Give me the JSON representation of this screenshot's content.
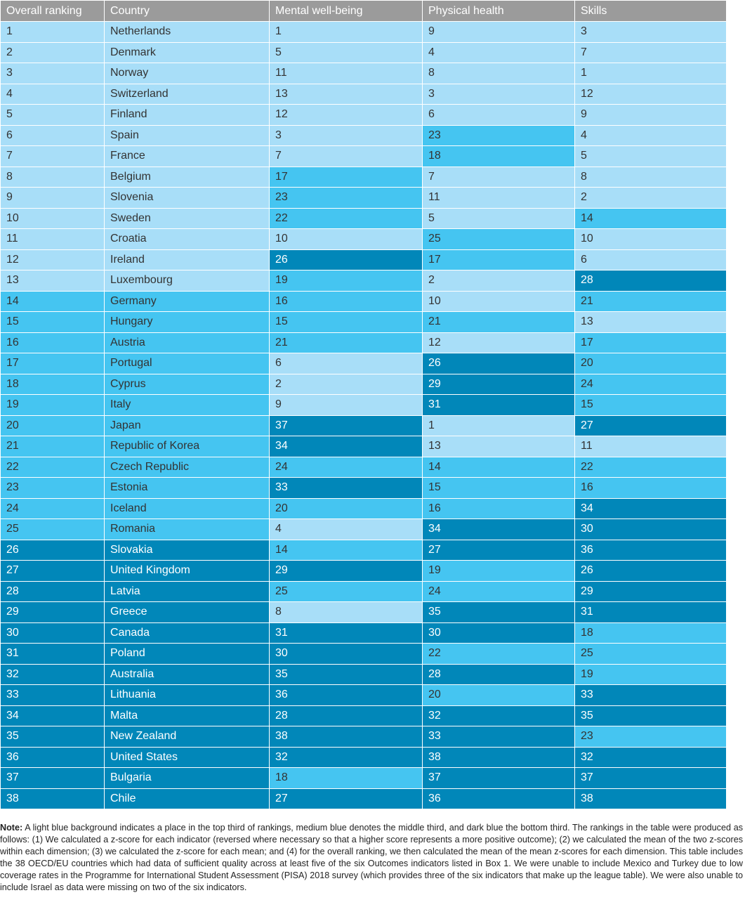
{
  "table": {
    "header": [
      "Overall ranking",
      "Country",
      "Mental well-being",
      "Physical health",
      "Skills"
    ],
    "header_color": "#9b9b9b",
    "tier_colors": [
      "#a8def8",
      "#45c5f1",
      "#0187b9"
    ],
    "rows": [
      [
        1,
        "Netherlands",
        1,
        9,
        3
      ],
      [
        2,
        "Denmark",
        5,
        4,
        7
      ],
      [
        3,
        "Norway",
        11,
        8,
        1
      ],
      [
        4,
        "Switzerland",
        13,
        3,
        12
      ],
      [
        5,
        "Finland",
        12,
        6,
        9
      ],
      [
        6,
        "Spain",
        3,
        23,
        4
      ],
      [
        7,
        "France",
        7,
        18,
        5
      ],
      [
        8,
        "Belgium",
        17,
        7,
        8
      ],
      [
        9,
        "Slovenia",
        23,
        11,
        2
      ],
      [
        10,
        "Sweden",
        22,
        5,
        14
      ],
      [
        11,
        "Croatia",
        10,
        25,
        10
      ],
      [
        12,
        "Ireland",
        26,
        17,
        6
      ],
      [
        13,
        "Luxembourg",
        19,
        2,
        28
      ],
      [
        14,
        "Germany",
        16,
        10,
        21
      ],
      [
        15,
        "Hungary",
        15,
        21,
        13
      ],
      [
        16,
        "Austria",
        21,
        12,
        17
      ],
      [
        17,
        "Portugal",
        6,
        26,
        20
      ],
      [
        18,
        "Cyprus",
        2,
        29,
        24
      ],
      [
        19,
        "Italy",
        9,
        31,
        15
      ],
      [
        20,
        "Japan",
        37,
        1,
        27
      ],
      [
        21,
        "Republic of Korea",
        34,
        13,
        11
      ],
      [
        22,
        "Czech Republic",
        24,
        14,
        22
      ],
      [
        23,
        "Estonia",
        33,
        15,
        16
      ],
      [
        24,
        "Iceland",
        20,
        16,
        34
      ],
      [
        25,
        "Romania",
        4,
        34,
        30
      ],
      [
        26,
        "Slovakia",
        14,
        27,
        36
      ],
      [
        27,
        "United Kingdom",
        29,
        19,
        26
      ],
      [
        28,
        "Latvia",
        25,
        24,
        29
      ],
      [
        29,
        "Greece",
        8,
        35,
        31
      ],
      [
        30,
        "Canada",
        31,
        30,
        18
      ],
      [
        31,
        "Poland",
        30,
        22,
        25
      ],
      [
        32,
        "Australia",
        35,
        28,
        19
      ],
      [
        33,
        "Lithuania",
        36,
        20,
        33
      ],
      [
        34,
        "Malta",
        28,
        32,
        35
      ],
      [
        35,
        "New Zealand",
        38,
        33,
        23
      ],
      [
        36,
        "United States",
        32,
        38,
        32
      ],
      [
        37,
        "Bulgaria",
        18,
        37,
        37
      ],
      [
        38,
        "Chile",
        27,
        36,
        38
      ]
    ]
  },
  "note": {
    "label": "Note:",
    "text": "A light blue background indicates a place in the top third of rankings, medium blue denotes the middle third, and dark blue the bottom third. The rankings in the table were produced as follows: (1) We calculated a z-score for each indicator (reversed where necessary so that a higher score represents a more positive outcome); (2) we calculated the mean of the two z-scores within each dimension; (3) we calculated the z-score for each mean; and (4) for the overall ranking, we then calculated the mean of the mean z-scores for each dimension. This table includes the 38 OECD/EU countries which had data of sufficient quality across at least five of the six Outcomes indicators listed in Box 1. We were unable to include Mexico and Turkey due to low coverage rates in the Programme for International Student Assessment (PISA) 2018 survey (which provides three of the six indicators that make up the league table). We were also unable to include Israel as data were missing on two of the six indicators."
  }
}
